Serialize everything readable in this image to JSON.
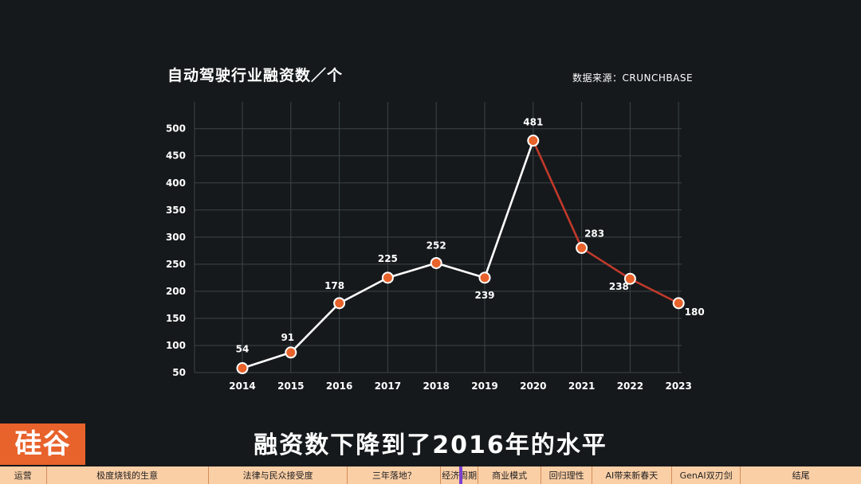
{
  "chart_data": {
    "type": "line",
    "title": "自动驾驶行业融资数／个",
    "source": "数据来源：CRUNCHBASE",
    "x": [
      "2014",
      "2015",
      "2016",
      "2017",
      "2018",
      "2019",
      "2020",
      "2021",
      "2022",
      "2023"
    ],
    "values": [
      54,
      91,
      178,
      225,
      252,
      239,
      481,
      283,
      238,
      180
    ],
    "plotted_positions": [
      58,
      87,
      178,
      225,
      252,
      225,
      478,
      280,
      223,
      178
    ],
    "yticks": [
      50,
      100,
      150,
      200,
      250,
      300,
      350,
      400,
      450,
      500
    ],
    "ylim": [
      0,
      500
    ],
    "grid": true,
    "segment_colors": {
      "rise": "#ffffff",
      "decline": "#c0392b"
    },
    "point_color": "#e8622b"
  },
  "subtitle": "融资数下降到了2016年的水平",
  "logo": "硅谷",
  "nav": {
    "items": [
      "运营",
      "极度烧钱的生意",
      "法律与民众接受度",
      "三年落地？",
      "经济周期",
      "商业模式",
      "回归理性",
      "AI带来新春天",
      "GenAI双刃剑",
      "结尾"
    ]
  }
}
